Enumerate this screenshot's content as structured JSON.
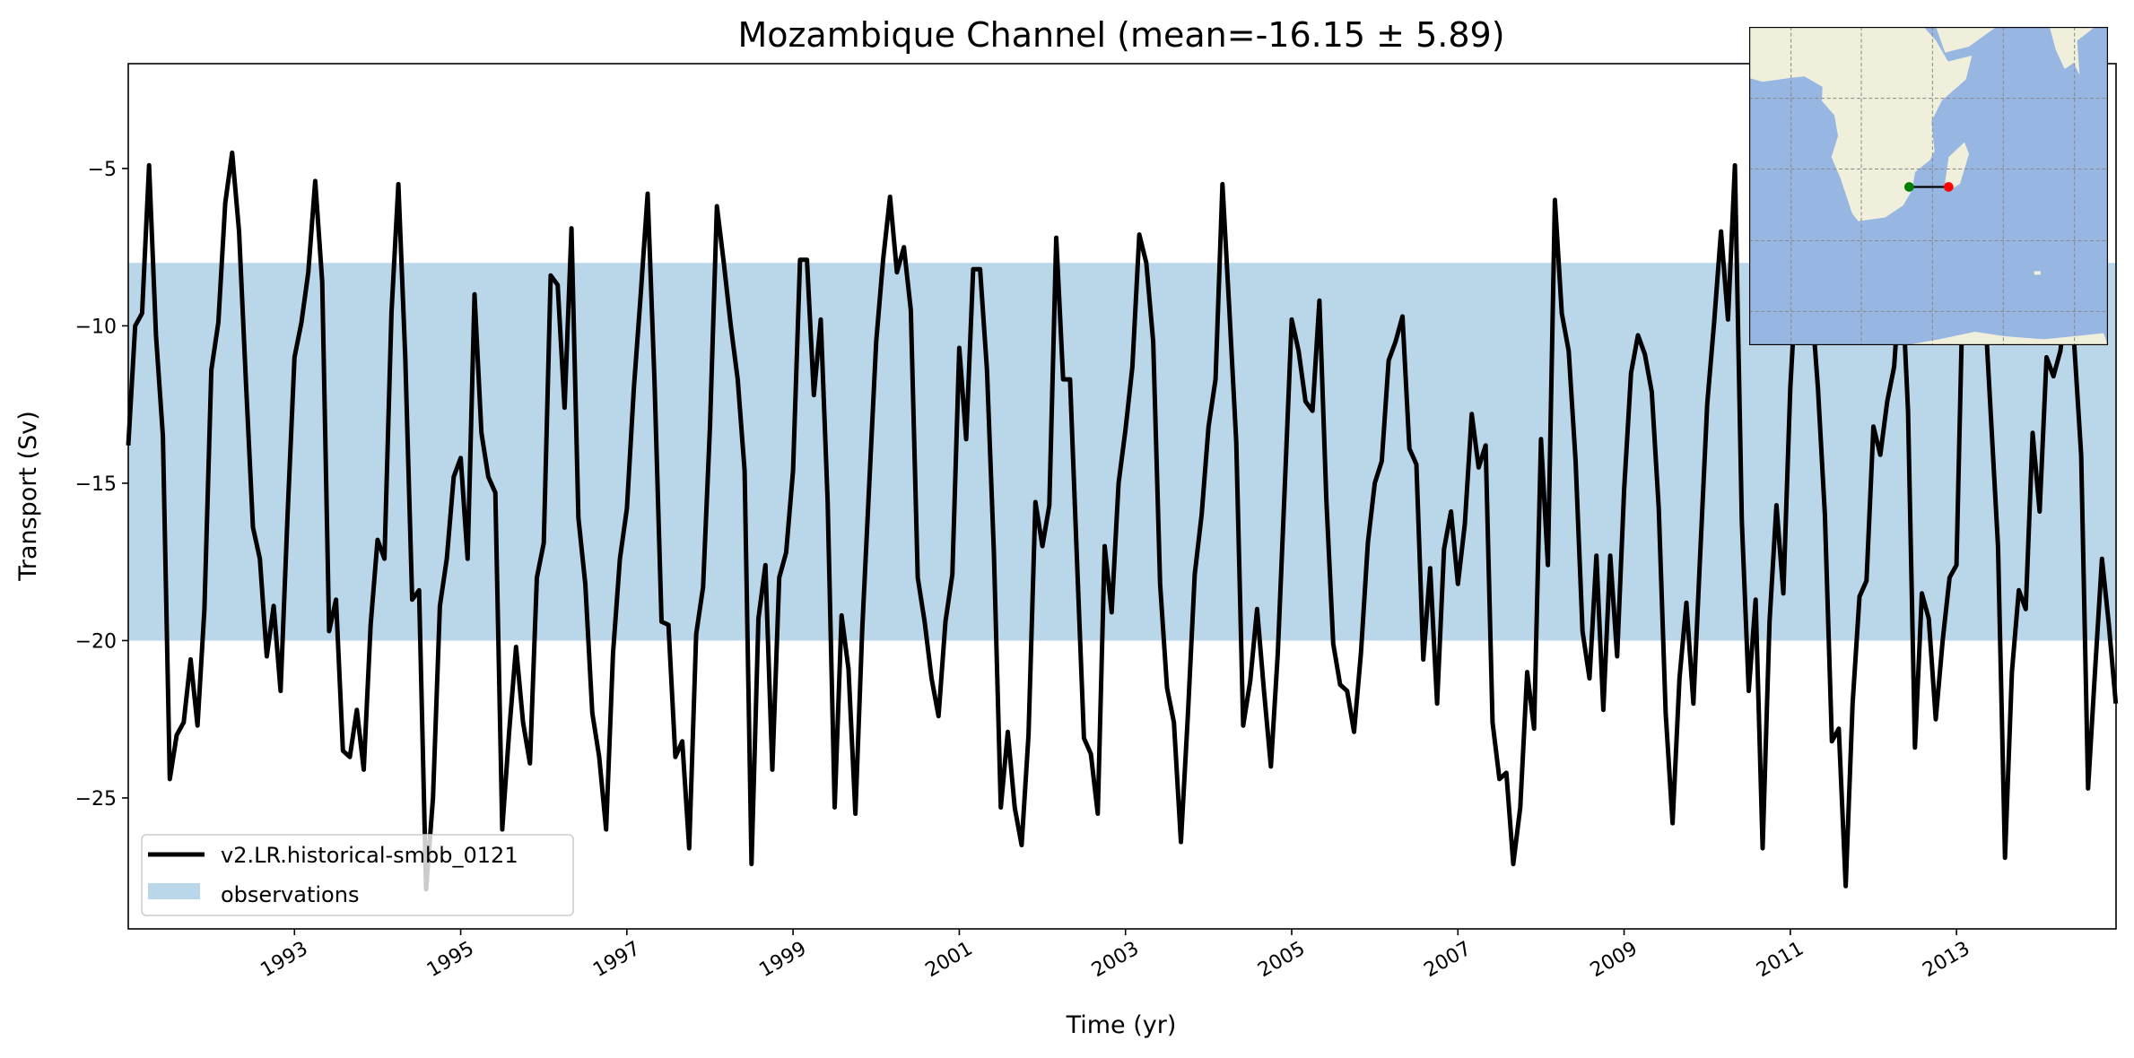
{
  "chart_data": {
    "type": "line",
    "title": "Mozambique Channel (mean=-16.15 ± 5.89)",
    "xlabel": "Time (yr)",
    "ylabel": "Transport (Sv)",
    "xlim": [
      1991.0,
      2014.92
    ],
    "ylim": [
      -29.16,
      -1.67
    ],
    "x_start_year": 1991,
    "x_step_months": 1,
    "xticks": [
      1993,
      1995,
      1997,
      1999,
      2001,
      2003,
      2005,
      2007,
      2009,
      2011,
      2013
    ],
    "xtick_labels": [
      "1993",
      "1995",
      "1997",
      "1999",
      "2001",
      "2003",
      "2005",
      "2007",
      "2009",
      "2011",
      "2013"
    ],
    "yticks": [
      -5,
      -10,
      -15,
      -20,
      -25
    ],
    "ytick_labels": [
      "−5",
      "−10",
      "−15",
      "−20",
      "−25"
    ],
    "grid": false,
    "legend_placement": "lower-left",
    "observations_band": {
      "name": "observations",
      "low": -20,
      "high": -8,
      "color": "#bad6e9"
    },
    "series": [
      {
        "name": "v2.LR.historical-smbb_0121",
        "color": "#000000",
        "values": [
          -13.8,
          -10,
          -9.6,
          -4.9,
          -10.3,
          -13.5,
          -24.4,
          -23,
          -22.6,
          -20.6,
          -22.7,
          -19,
          -11.4,
          -9.9,
          -6.1,
          -4.5,
          -7,
          -11.8,
          -16.4,
          -17.4,
          -20.5,
          -18.9,
          -21.6,
          -16,
          -11,
          -9.9,
          -8.3,
          -5.4,
          -8.6,
          -19.7,
          -18.7,
          -23.5,
          -23.7,
          -22.2,
          -24.1,
          -19.5,
          -16.8,
          -17.4,
          -9.6,
          -5.5,
          -11,
          -18.7,
          -18.4,
          -27.9,
          -25,
          -18.9,
          -17.4,
          -14.8,
          -14.2,
          -17.4,
          -9,
          -13.4,
          -14.8,
          -15.3,
          -26,
          -22.9,
          -20.2,
          -22.6,
          -23.9,
          -18,
          -16.9,
          -8.4,
          -8.7,
          -12.6,
          -6.9,
          -16.1,
          -18.2,
          -22.3,
          -23.7,
          -26,
          -20.4,
          -17.4,
          -15.8,
          -12,
          -9,
          -5.8,
          -11.8,
          -19.4,
          -19.5,
          -23.7,
          -23.2,
          -26.6,
          -19.8,
          -18.3,
          -13.2,
          -6.2,
          -8,
          -10,
          -11.7,
          -14.6,
          -27.1,
          -19.3,
          -17.6,
          -24.1,
          -18,
          -17.2,
          -14.6,
          -7.9,
          -7.9,
          -12.2,
          -9.8,
          -15.6,
          -25.3,
          -19.2,
          -20.9,
          -25.5,
          -19.6,
          -15,
          -10.5,
          -7.9,
          -5.9,
          -8.3,
          -7.5,
          -9.5,
          -18,
          -19.4,
          -21.2,
          -22.4,
          -19.4,
          -17.9,
          -10.7,
          -13.6,
          -8.2,
          -8.2,
          -11.4,
          -17.2,
          -25.3,
          -22.9,
          -25.3,
          -26.5,
          -23,
          -15.6,
          -17,
          -15.7,
          -7.2,
          -11.7,
          -11.7,
          -17.5,
          -23.1,
          -23.6,
          -25.5,
          -17,
          -19.1,
          -15,
          -13.3,
          -11.3,
          -7.1,
          -8,
          -10.5,
          -18.2,
          -21.5,
          -22.6,
          -26.4,
          -22.4,
          -17.9,
          -16,
          -13.2,
          -11.7,
          -5.5,
          -9.5,
          -13.7,
          -22.7,
          -21.3,
          -19,
          -21.6,
          -24,
          -20.4,
          -15.1,
          -9.8,
          -10.8,
          -12.4,
          -12.7,
          -9.2,
          -15.5,
          -20.1,
          -21.4,
          -21.6,
          -22.9,
          -20.4,
          -16.9,
          -15,
          -14.3,
          -11.1,
          -10.5,
          -9.7,
          -13.9,
          -14.4,
          -20.6,
          -17.7,
          -22,
          -17.1,
          -15.9,
          -18.2,
          -16.3,
          -12.8,
          -14.5,
          -13.8,
          -22.6,
          -24.4,
          -24.2,
          -27.1,
          -25.3,
          -21,
          -22.8,
          -13.6,
          -17.6,
          -6,
          -9.6,
          -10.8,
          -14.3,
          -19.7,
          -21.2,
          -17.3,
          -22.2,
          -17.3,
          -20.5,
          -15.2,
          -11.5,
          -10.3,
          -10.9,
          -12.1,
          -15.8,
          -22.3,
          -25.8,
          -21.2,
          -18.8,
          -22,
          -17.2,
          -12.5,
          -9.9,
          -7,
          -9.8,
          -4.9,
          -16.2,
          -21.6,
          -18.7,
          -26.6,
          -19.4,
          -15.7,
          -18.5,
          -12,
          -8,
          -7,
          -9,
          -12,
          -16,
          -23.2,
          -22.8,
          -27.8,
          -22,
          -18.6,
          -18.1,
          -13.2,
          -14.1,
          -12.4,
          -11.3,
          -8,
          -12.7,
          -23.4,
          -18.5,
          -19.3,
          -22.5,
          -20,
          -18,
          -17.6,
          -8,
          -6,
          -8,
          -9,
          -13,
          -17,
          -26.9,
          -21,
          -18.4,
          -19,
          -13.4,
          -15.9,
          -11,
          -11.6,
          -10.8,
          -9,
          -10.6,
          -14.1,
          -24.7,
          -21,
          -17.4,
          -19.5,
          -22
        ]
      }
    ],
    "inset_map": {
      "ocean_color": "#97b6e1",
      "land_color": "#efefdb",
      "section_start_color": "#008000",
      "section_end_color": "#ff0000"
    }
  }
}
